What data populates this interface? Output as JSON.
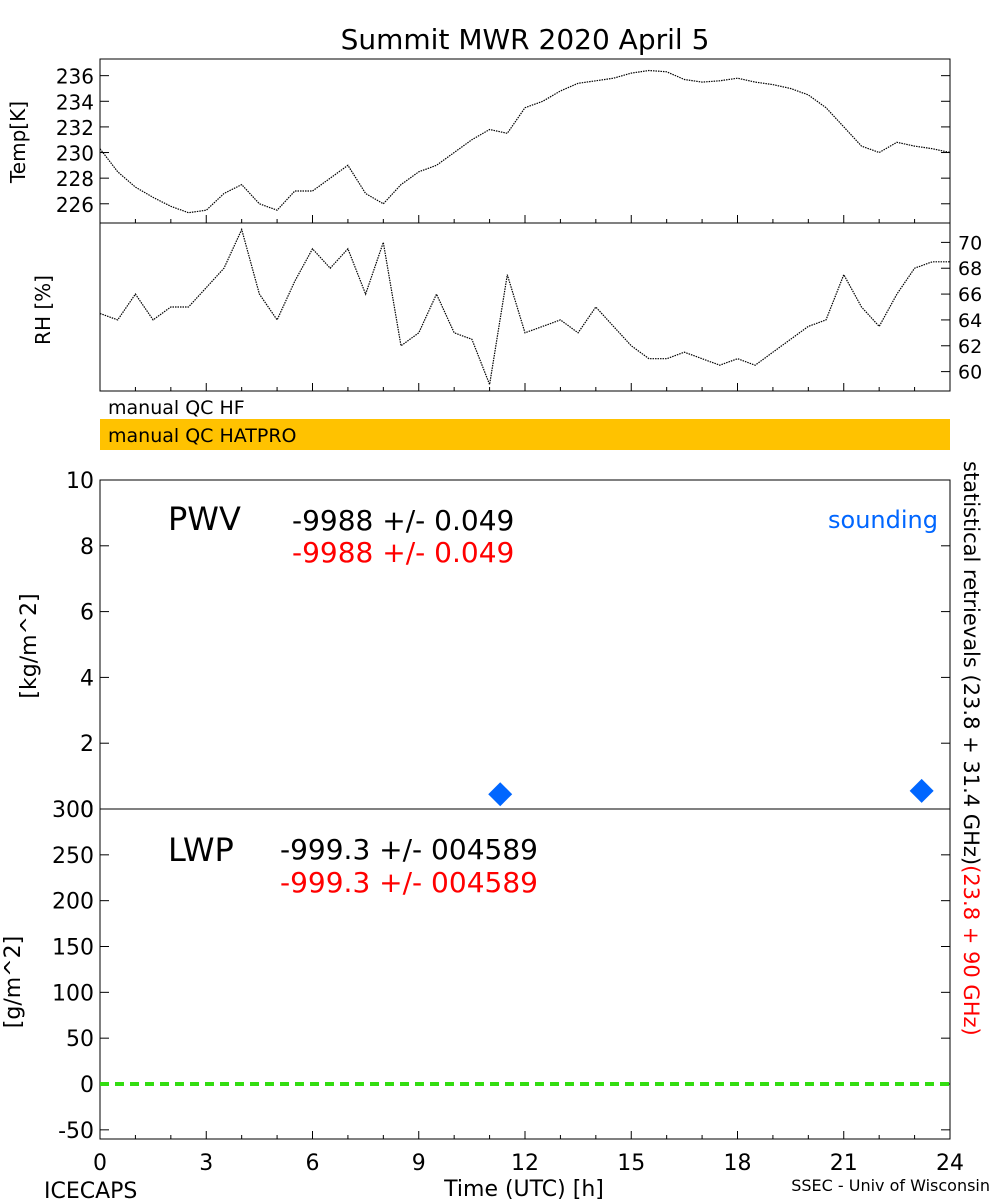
{
  "title": "Summit MWR 2020 April  5",
  "footer": {
    "left": "ICECAPS",
    "right": "SSEC - Univ of Wisconsin"
  },
  "qc": {
    "hf_label": "manual QC HF",
    "hatpro_label": "manual QC HATPRO",
    "hatpro_color": "#ffc200"
  },
  "right_label": {
    "black": "statistical retrievals (23.8 + 31.4 GHz)",
    "red": "(23.8 + 90 GHz)"
  },
  "x_axis": {
    "label": "Time (UTC) [h]",
    "range": [
      0,
      24
    ],
    "ticks": [
      "0",
      "3",
      "6",
      "9",
      "12",
      "15",
      "18",
      "21",
      "24"
    ]
  },
  "colors": {
    "red": "#ff0000",
    "blue": "#0066ff",
    "green": "#33dd11"
  },
  "chart_data": [
    {
      "type": "line",
      "panel": "temperature",
      "ylabel": "Temp[K]",
      "ylim": [
        224.5,
        237.3
      ],
      "yticks": [
        "226",
        "228",
        "230",
        "232",
        "234",
        "236"
      ],
      "series": [
        {
          "x": [
            0,
            0.5,
            1,
            1.5,
            2,
            2.5,
            3,
            3.5,
            4,
            4.5,
            5,
            5.5,
            6,
            6.5,
            7,
            7.5,
            8,
            8.5,
            9,
            9.5,
            10,
            10.5,
            11,
            11.5,
            12,
            12.5,
            13,
            13.5,
            14,
            14.5,
            15,
            15.5,
            16,
            16.5,
            17,
            17.5,
            18,
            18.5,
            19,
            19.5,
            20,
            20.5,
            21,
            21.5,
            22,
            22.5,
            23,
            23.5,
            24
          ],
          "y": [
            230.3,
            228.5,
            227.3,
            226.5,
            225.8,
            225.3,
            225.5,
            226.8,
            227.5,
            226.0,
            225.5,
            227.0,
            227.0,
            228.0,
            229.0,
            226.8,
            226.0,
            227.5,
            228.5,
            229.0,
            230.0,
            231.0,
            231.8,
            231.5,
            233.5,
            234.0,
            234.8,
            235.4,
            235.6,
            235.8,
            236.2,
            236.4,
            236.3,
            235.7,
            235.5,
            235.6,
            235.8,
            235.5,
            235.3,
            235.0,
            234.5,
            233.5,
            232.0,
            230.5,
            230.0,
            230.8,
            230.5,
            230.3,
            230.0
          ]
        }
      ]
    },
    {
      "type": "line",
      "panel": "relative_humidity",
      "ylabel": "RH [%]",
      "ylim": [
        58.5,
        71.5
      ],
      "yticks": [
        "60",
        "62",
        "64",
        "66",
        "68",
        "70"
      ],
      "series": [
        {
          "x": [
            0,
            0.5,
            1,
            1.5,
            2,
            2.5,
            3,
            3.5,
            4,
            4.5,
            5,
            5.5,
            6,
            6.5,
            7,
            7.5,
            8,
            8.5,
            9,
            9.5,
            10,
            10.5,
            11,
            11.5,
            12,
            12.5,
            13,
            13.5,
            14,
            14.5,
            15,
            15.5,
            16,
            16.5,
            17,
            17.5,
            18,
            18.5,
            19,
            19.5,
            20,
            20.5,
            21,
            21.5,
            22,
            22.5,
            23,
            23.5,
            24
          ],
          "y": [
            64.5,
            64.0,
            66.0,
            64.0,
            65.0,
            65.0,
            66.5,
            68.0,
            71.0,
            66.0,
            64.0,
            67.0,
            69.5,
            68.0,
            69.5,
            66.0,
            70.0,
            62.0,
            63.0,
            66.0,
            63.0,
            62.5,
            59.0,
            67.5,
            63.0,
            63.5,
            64.0,
            63.0,
            65.0,
            63.5,
            62.0,
            61.0,
            61.0,
            61.5,
            61.0,
            60.5,
            61.0,
            60.5,
            61.5,
            62.5,
            63.5,
            64.0,
            67.5,
            65.0,
            63.5,
            66.0,
            68.0,
            68.5,
            68.5
          ]
        }
      ]
    },
    {
      "type": "scatter",
      "panel": "pwv",
      "ylabel": "[kg/m^2]",
      "ylim": [
        0,
        10
      ],
      "yticks": [
        "0",
        "2",
        "4",
        "6",
        "8",
        "10"
      ],
      "label": "PWV",
      "readouts": [
        "-9988 +/- 0.049",
        "-9988 +/- 0.049"
      ],
      "legend": "sounding",
      "series": [
        {
          "name": "sounding",
          "x": [
            11.3,
            23.2
          ],
          "y": [
            0.45,
            0.55
          ]
        }
      ]
    },
    {
      "type": "line",
      "panel": "lwp",
      "ylabel": "[g/m^2]",
      "ylim": [
        -60,
        300
      ],
      "yticks": [
        "-50",
        "0",
        "50",
        "100",
        "150",
        "200",
        "250",
        "300"
      ],
      "label": "LWP",
      "readouts": [
        "-999.3 +/- 004589",
        "-999.3 +/- 004589"
      ],
      "series": [
        {
          "x": [
            0,
            24
          ],
          "y": [
            0,
            0
          ]
        }
      ]
    }
  ]
}
